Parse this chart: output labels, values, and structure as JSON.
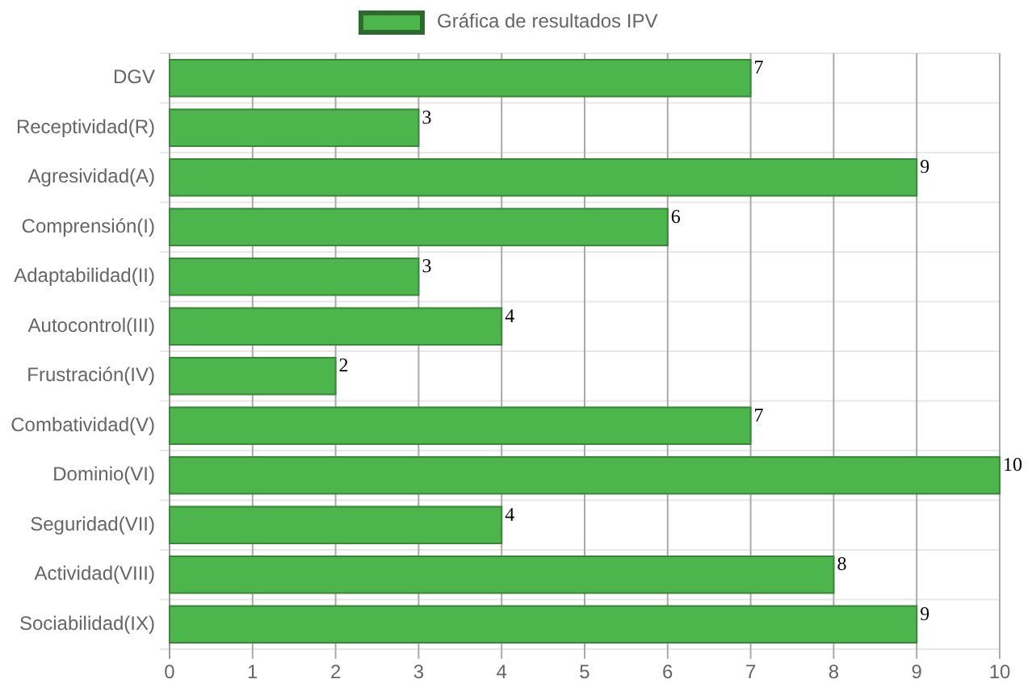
{
  "chart_data": {
    "type": "bar",
    "orientation": "horizontal",
    "categories": [
      "DGV",
      "Receptividad(R)",
      "Agresividad(A)",
      "Comprensión(I)",
      "Adaptabilidad(II)",
      "Autocontrol(III)",
      "Frustración(IV)",
      "Combatividad(V)",
      "Dominio(VI)",
      "Seguridad(VII)",
      "Actividad(VIII)",
      "Sociabilidad(IX)"
    ],
    "series": [
      {
        "name": "Gráfica de resultados IPV",
        "color": "#4cb54c",
        "values": [
          7,
          3,
          9,
          6,
          3,
          4,
          2,
          7,
          10,
          4,
          8,
          9
        ]
      }
    ],
    "xlim": [
      0,
      10
    ],
    "xticks": [
      0,
      1,
      2,
      3,
      4,
      5,
      6,
      7,
      8,
      9,
      10
    ],
    "grid": true,
    "legend": "top",
    "data_labels": true
  }
}
